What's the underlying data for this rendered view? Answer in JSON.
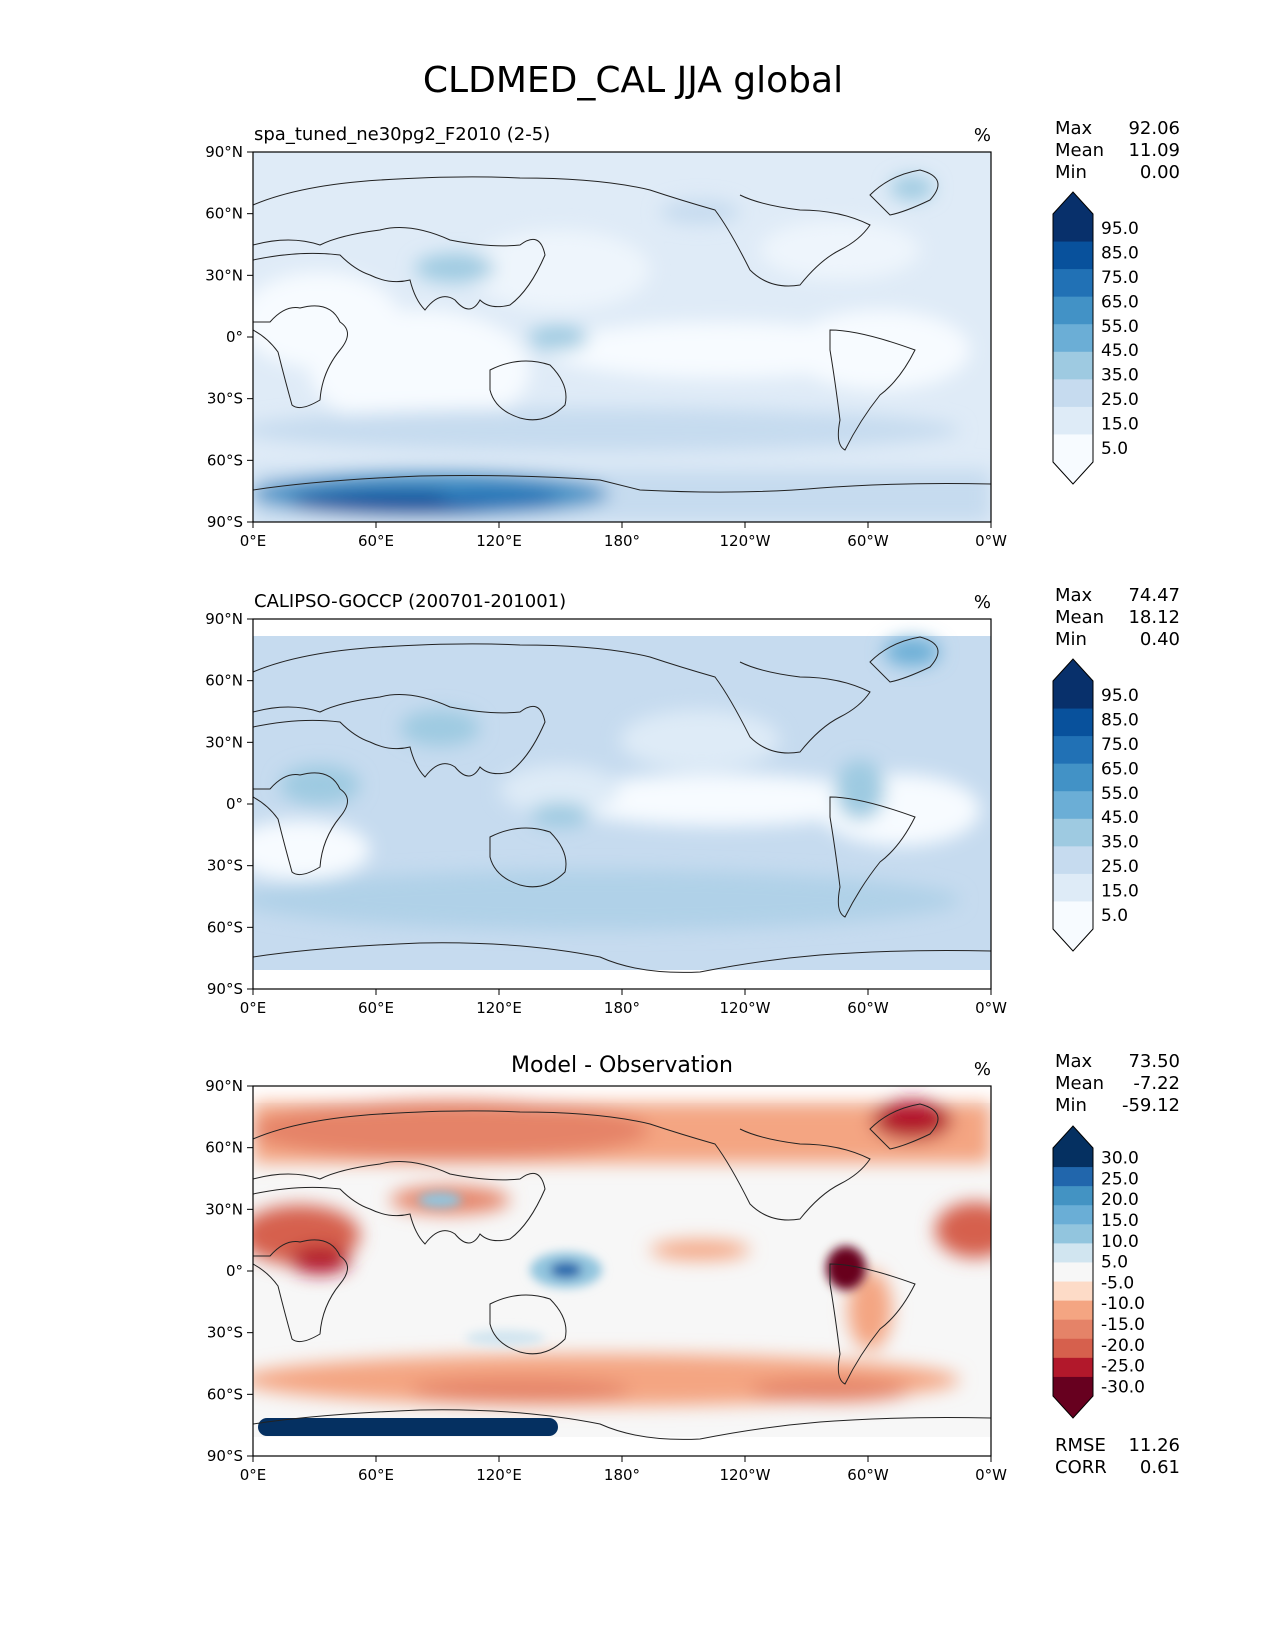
{
  "figure": {
    "title": "CLDMED_CAL JJA global"
  },
  "chart_data": [
    {
      "type": "heatmap",
      "panel": "model",
      "title": "spa_tuned_ne30pg2_F2010 (2-5)",
      "units": "%",
      "stats": {
        "max_label": "Max",
        "max": "92.06",
        "mean_label": "Mean",
        "mean": "11.09",
        "min_label": "Min",
        "min": "0.00"
      },
      "colorbar": {
        "levels": [
          0,
          5,
          10,
          15,
          20,
          25,
          30,
          35,
          40,
          45,
          50,
          55,
          60,
          65,
          70,
          75,
          80,
          85,
          90,
          95,
          100
        ],
        "tick_labels": [
          "95.0",
          "85.0",
          "75.0",
          "65.0",
          "55.0",
          "45.0",
          "35.0",
          "25.0",
          "15.0",
          "5.0"
        ],
        "colors": [
          "#f7fbff",
          "#deebf7",
          "#c6dbef",
          "#9ecae1",
          "#6baed6",
          "#4292c6",
          "#2171b5",
          "#08519c",
          "#08306b"
        ],
        "extend": "both"
      },
      "xlim": [
        0,
        360
      ],
      "ylim": [
        -90,
        90
      ]
    },
    {
      "type": "heatmap",
      "panel": "observation",
      "title": "CALIPSO-GOCCP (200701-201001)",
      "units": "%",
      "stats": {
        "max_label": "Max",
        "max": "74.47",
        "mean_label": "Mean",
        "mean": "18.12",
        "min_label": "Min",
        "min": "0.40"
      },
      "colorbar": {
        "tick_labels": [
          "95.0",
          "85.0",
          "75.0",
          "65.0",
          "55.0",
          "45.0",
          "35.0",
          "25.0",
          "15.0",
          "5.0"
        ],
        "colors": [
          "#f7fbff",
          "#deebf7",
          "#c6dbef",
          "#9ecae1",
          "#6baed6",
          "#4292c6",
          "#2171b5",
          "#08519c",
          "#08306b"
        ],
        "extend": "both"
      },
      "xlim": [
        0,
        360
      ],
      "ylim": [
        -90,
        90
      ]
    },
    {
      "type": "heatmap",
      "panel": "difference",
      "title": "Model - Observation",
      "units": "%",
      "stats": {
        "max_label": "Max",
        "max": "73.50",
        "mean_label": "Mean",
        "mean": "-7.22",
        "min_label": "Min",
        "min": "-59.12"
      },
      "metrics": {
        "rmse_label": "RMSE",
        "rmse": "11.26",
        "corr_label": "CORR",
        "corr": "0.61"
      },
      "colorbar": {
        "levels": [
          -35,
          -30,
          -25,
          -20,
          -15,
          -10,
          -5,
          5,
          10,
          15,
          20,
          25,
          30,
          35
        ],
        "tick_labels": [
          "30.0",
          "25.0",
          "20.0",
          "15.0",
          "10.0",
          "5.0",
          "-5.0",
          "-10.0",
          "-15.0",
          "-20.0",
          "-25.0",
          "-30.0"
        ],
        "colors": [
          "#67001f",
          "#b2182b",
          "#d6604d",
          "#e58368",
          "#f4a582",
          "#fddbc7",
          "#f7f7f7",
          "#d1e5f0",
          "#92c5de",
          "#6aaed6",
          "#4393c3",
          "#2166ac",
          "#053061"
        ],
        "extend": "both"
      },
      "xlim": [
        0,
        360
      ],
      "ylim": [
        -90,
        90
      ]
    }
  ],
  "axes": {
    "x_ticks": [
      "0°E",
      "60°E",
      "120°E",
      "180°",
      "120°W",
      "60°W",
      "0°W"
    ],
    "y_ticks": [
      "90°N",
      "60°N",
      "30°N",
      "0°",
      "30°S",
      "60°S",
      "90°S"
    ]
  }
}
